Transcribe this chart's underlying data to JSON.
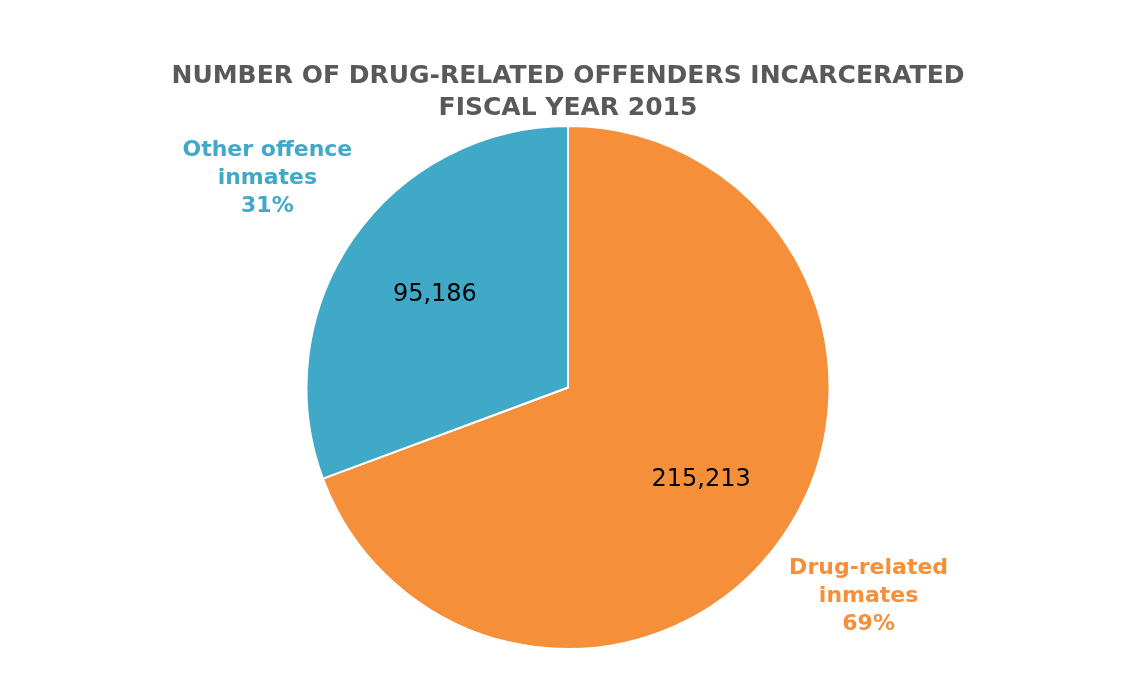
{
  "chart_data": {
    "type": "pie",
    "title": "NUMBER OF DRUG-RELATED OFFENDERS INCARCERATED\nFISCAL YEAR 2015",
    "categories": [
      "Drug-related inmates",
      "Other offence inmates"
    ],
    "values": [
      215213,
      95186
    ],
    "colors": [
      "#f58f3a",
      "#40a9c8"
    ],
    "value_labels": [
      "215,213",
      "95,186"
    ],
    "annotations": [
      "69%",
      "31%"
    ]
  }
}
